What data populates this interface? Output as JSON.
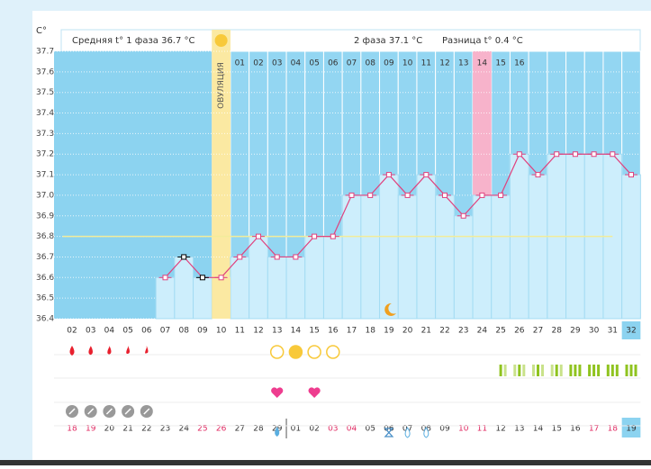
{
  "chart_data": {
    "type": "line",
    "y_unit": "C°",
    "phase1_label": "Средняя t° 1 фаза 36.7 °C",
    "phase2_label": "2 фаза 37.1 °C",
    "diff_label": "Разница t° 0.4 °C",
    "ovulation_label": "ОВУЛЯЦИЯ",
    "categories": [
      "02",
      "03",
      "04",
      "05",
      "06",
      "07",
      "08",
      "09",
      "10",
      "11",
      "12",
      "13",
      "14",
      "15",
      "16",
      "17",
      "18",
      "19",
      "20",
      "21",
      "22",
      "23",
      "24",
      "25",
      "26",
      "27",
      "28",
      "29",
      "30",
      "31",
      "32"
    ],
    "phase2_days": [
      "01",
      "02",
      "03",
      "04",
      "05",
      "06",
      "07",
      "08",
      "09",
      "10",
      "11",
      "12",
      "13",
      "14",
      "15",
      "16"
    ],
    "dates": [
      "18",
      "19",
      "20",
      "21",
      "22",
      "23",
      "24",
      "25",
      "26",
      "27",
      "28",
      "29",
      "01",
      "02",
      "03",
      "04",
      "05",
      "06",
      "07",
      "08",
      "09",
      "10",
      "11",
      "12",
      "13",
      "14",
      "15",
      "16",
      "17",
      "18",
      "19"
    ],
    "date_red": [
      true,
      true,
      false,
      false,
      false,
      false,
      false,
      true,
      true,
      false,
      false,
      false,
      false,
      false,
      true,
      true,
      false,
      false,
      false,
      false,
      false,
      true,
      true,
      false,
      false,
      false,
      false,
      false,
      true,
      true,
      false
    ],
    "series": [
      {
        "color": "#e0427e",
        "values": [
          null,
          null,
          null,
          null,
          null,
          36.6,
          36.7,
          36.6,
          36.6,
          36.7,
          36.8,
          36.7,
          36.7,
          36.8,
          36.8,
          37.0,
          37.0,
          37.1,
          37.0,
          37.1,
          37.0,
          36.9,
          37.0,
          37.0,
          37.2,
          37.1,
          37.2,
          37.2,
          37.2,
          37.2,
          37.1
        ]
      }
    ],
    "cover_line": 36.8,
    "ylim": [
      36.4,
      37.7
    ],
    "yticks": [
      36.4,
      36.5,
      36.6,
      36.7,
      36.8,
      36.9,
      {
        "value": 37,
        "label": "37.0"
      },
      37.1,
      37.2,
      37.3,
      37.4,
      37.5,
      37.6,
      37.7
    ],
    "grid": true
  }
}
